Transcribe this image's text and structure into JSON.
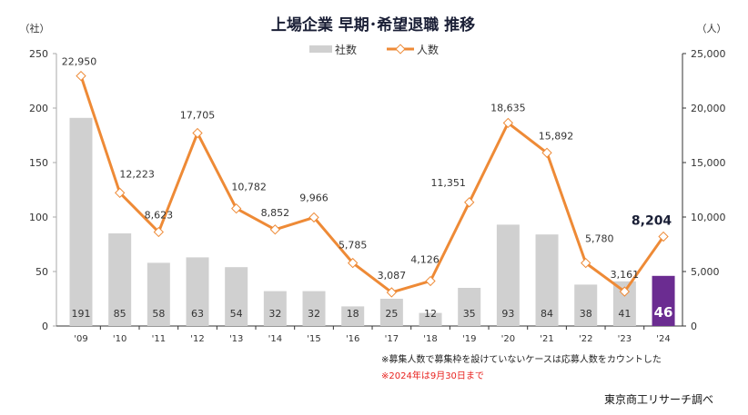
{
  "chart_data": {
    "type": "bar+line",
    "title": "上場企業 早期･希望退職 推移",
    "left_unit": "（社）",
    "right_unit": "（人）",
    "categories": [
      "'09",
      "'10",
      "'11",
      "'12",
      "'13",
      "'14",
      "'15",
      "'16",
      "'17",
      "'18",
      "'19",
      "'20",
      "'21",
      "'22",
      "'23",
      "'24"
    ],
    "series": [
      {
        "name": "社数",
        "type": "bar",
        "axis": "left",
        "color": "#d0d0d0",
        "highlight_color": "#6b2c91",
        "values": [
          191,
          85,
          58,
          63,
          54,
          32,
          32,
          18,
          25,
          12,
          35,
          93,
          84,
          38,
          41,
          46
        ]
      },
      {
        "name": "人数",
        "type": "line",
        "axis": "right",
        "color": "#ee8a36",
        "values": [
          22950,
          12223,
          8623,
          17705,
          10782,
          8852,
          9966,
          5785,
          3087,
          4126,
          11351,
          18635,
          15892,
          5780,
          3161,
          8204
        ]
      }
    ],
    "left_axis": {
      "ylim": [
        0,
        250
      ],
      "ticks": [
        "0",
        "50",
        "100",
        "150",
        "200",
        "250"
      ]
    },
    "right_axis": {
      "ylim": [
        0,
        25000
      ],
      "ticks": [
        "0",
        "5,000",
        "10,000",
        "15,000",
        "20,000",
        "25,000"
      ]
    },
    "bar_labels": [
      "191",
      "85",
      "58",
      "63",
      "54",
      "32",
      "32",
      "18",
      "25",
      "12",
      "35",
      "93",
      "84",
      "38",
      "41",
      "46"
    ],
    "line_labels": [
      "22,950",
      "12,223",
      "8,623",
      "17,705",
      "10,782",
      "8,852",
      "9,966",
      "5,785",
      "3,087",
      "4,126",
      "11,351",
      "18,635",
      "15,892",
      "5,780",
      "3,161",
      "8,204"
    ],
    "legend": {
      "placement": "top-center",
      "entries": [
        "社数",
        "人数"
      ]
    },
    "grid": false
  },
  "notes": {
    "note1": "※募集人数で募集枠を設けていないケースは応募人数をカウントした",
    "note2": "※2024年は9月30日まで",
    "note2_color": "#e8231f",
    "source": "東京商工リサーチ調べ"
  }
}
